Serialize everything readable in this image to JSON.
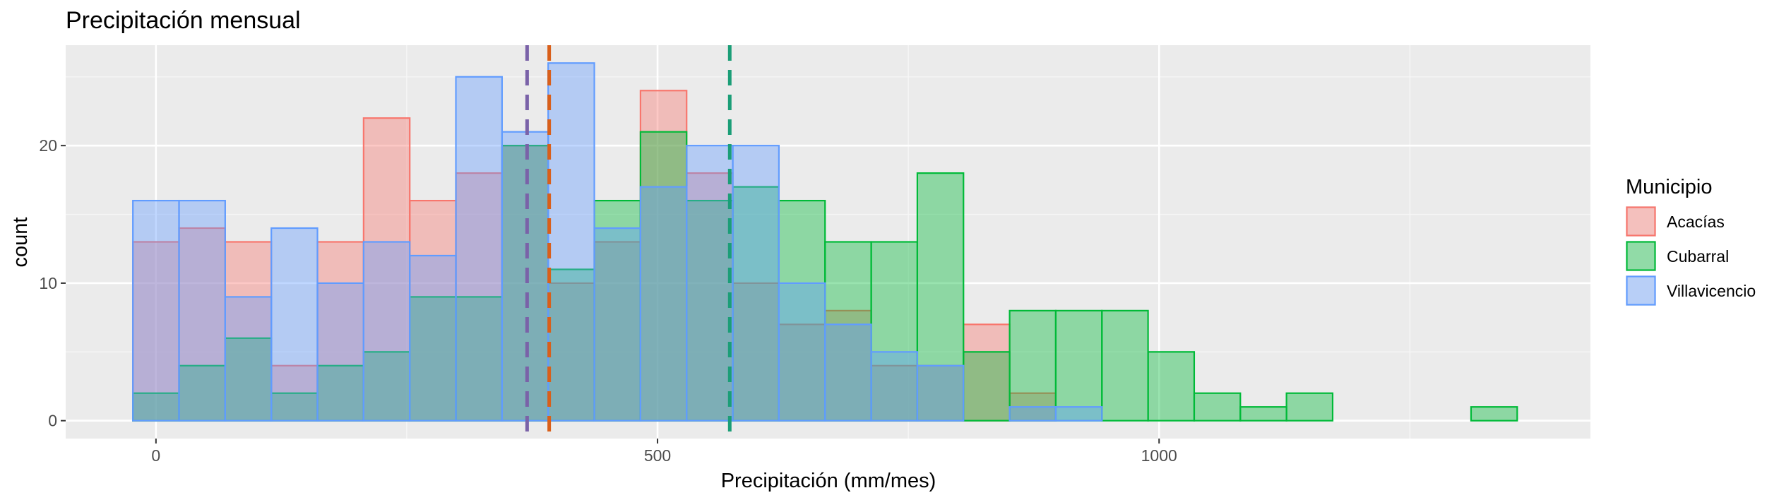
{
  "chart_data": {
    "type": "histogram",
    "title": "Precipitación mensual",
    "xlabel": "Precipitación (mm/mes)",
    "ylabel": "count",
    "xlim": [
      -90,
      1430
    ],
    "ylim": [
      -1.3,
      27.3
    ],
    "x_ticks": [
      0,
      500,
      1000
    ],
    "y_ticks": [
      0,
      10,
      20
    ],
    "bin_width": 46,
    "bin_starts": [
      -23,
      23,
      69,
      115,
      161,
      207,
      253,
      299,
      345,
      391,
      437,
      483,
      529,
      575,
      621,
      667,
      713,
      759,
      805,
      851,
      897,
      943,
      989,
      1035,
      1081,
      1127,
      1173,
      1219,
      1265,
      1311
    ],
    "legend": {
      "title": "Municipio",
      "position": "right"
    },
    "grid": true,
    "series": [
      {
        "name": "Acacías",
        "color": "#F8766D",
        "values": [
          13,
          14,
          13,
          4,
          13,
          22,
          16,
          18,
          20,
          10,
          13,
          24,
          18,
          10,
          7,
          8,
          4,
          4,
          7,
          2,
          0,
          0,
          0,
          0,
          0,
          0,
          0,
          0,
          0,
          0
        ]
      },
      {
        "name": "Cubarral",
        "color": "#00BA38",
        "values": [
          2,
          4,
          6,
          2,
          4,
          5,
          9,
          9,
          20,
          11,
          16,
          21,
          16,
          17,
          16,
          13,
          13,
          18,
          5,
          8,
          8,
          8,
          5,
          2,
          1,
          2,
          0,
          0,
          0,
          1
        ]
      },
      {
        "name": "Villavicencio",
        "color": "#619CFF",
        "values": [
          16,
          16,
          9,
          14,
          10,
          13,
          12,
          25,
          21,
          26,
          14,
          17,
          20,
          20,
          10,
          7,
          5,
          4,
          0,
          1,
          1,
          0,
          0,
          0,
          0,
          0,
          0,
          0,
          0,
          0
        ]
      }
    ],
    "reference_lines": [
      {
        "series": "Villavicencio",
        "x": 370,
        "color": "#7A62A8"
      },
      {
        "series": "Acacías",
        "x": 392,
        "color": "#D95F1A"
      },
      {
        "series": "Cubarral",
        "x": 572,
        "color": "#1B9E77"
      }
    ]
  }
}
